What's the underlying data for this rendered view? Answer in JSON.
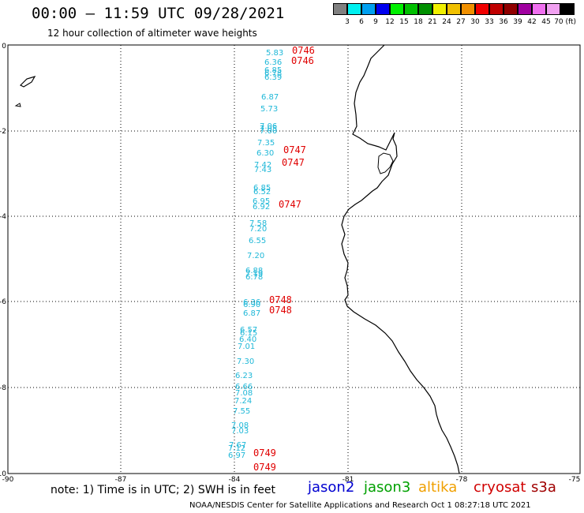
{
  "header": {
    "title": "00:00 – 11:59 UTC 09/28/2021",
    "subtitle": "12 hour collection of altimeter wave heights"
  },
  "legend": {
    "colors": [
      "#808080",
      "#00f0f0",
      "#00a0f0",
      "#0000f0",
      "#00f000",
      "#00c000",
      "#009000",
      "#f0f000",
      "#f0c000",
      "#f09000",
      "#f00000",
      "#c00000",
      "#900000",
      "#a000a0",
      "#f070f0",
      "#f0a0f0",
      "#000000"
    ],
    "labels": [
      "3",
      "6",
      "9",
      "12",
      "15",
      "18",
      "21",
      "24",
      "27",
      "30",
      "33",
      "36",
      "39",
      "42",
      "45",
      "70 (ft)"
    ]
  },
  "axes": {
    "lat_labels": [
      "0",
      "-2",
      "-4",
      "-6",
      "-8",
      "-10"
    ],
    "lon_labels": [
      "-90",
      "-87",
      "-84",
      "-81",
      "-78",
      "-75"
    ]
  },
  "observations": {
    "wave_heights": [
      "5.83",
      "6.36",
      "6.85",
      "6.78",
      "6.39",
      "6.87",
      "5.73",
      "7.06",
      "7.05",
      "7.00",
      "7.35",
      "6.30",
      "7.42",
      "7.43",
      "6.85",
      "6.52",
      "6.95",
      "6.92",
      "7.58",
      "7.20",
      "6.55",
      "7.20",
      "6.88",
      "7.19",
      "6.78",
      "6.36",
      "6.90",
      "6.87",
      "6.57",
      "6.15",
      "6.40",
      "7.01",
      "7.30",
      "6.23",
      "6.66",
      "7.08",
      "7.24",
      "7.55",
      "7.08",
      "7.03",
      "7.67",
      "7.12",
      "6.97"
    ],
    "pass_times": [
      "0746",
      "0746",
      "0747",
      "0747",
      "0747",
      "0748",
      "0748",
      "0749",
      "0749"
    ]
  },
  "footer": {
    "note": "note: 1) Time is in UTC; 2) SWH is in feet",
    "satellites": [
      {
        "name": "jason2",
        "color": "#0000d0"
      },
      {
        "name": "jason3",
        "color": "#00a000"
      },
      {
        "name": "altika",
        "color": "#f0a000"
      },
      {
        "name": "cryosat",
        "color": "#d00000"
      },
      {
        "name": "s3a",
        "color": "#a00000"
      }
    ],
    "credit": "NOAA/NESDIS Center for Satellite Applications and Research    Oct  1 08:27:18 UTC 2021"
  }
}
